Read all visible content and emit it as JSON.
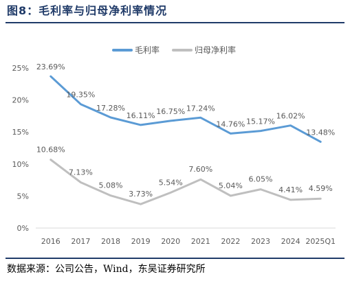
{
  "figure": {
    "title": "图8：毛利率与归母净利率情况",
    "source": "数据来源：公司公告，Wind，东吴证券研究所"
  },
  "colors": {
    "title": "#1f3a68",
    "series_gross": "#5b9bd5",
    "series_net": "#bfbfbf",
    "axis": "#d9d9d9",
    "text": "#595959"
  },
  "chart_data": {
    "type": "line",
    "categories": [
      "2016",
      "2017",
      "2018",
      "2019",
      "2020",
      "2021",
      "2022",
      "2023",
      "2024",
      "2025Q1"
    ],
    "series": [
      {
        "name": "毛利率",
        "values": [
          23.69,
          19.35,
          17.28,
          16.11,
          16.75,
          17.24,
          14.76,
          15.17,
          16.02,
          13.48
        ],
        "labels": [
          "23.69%",
          "19.35%",
          "17.28%",
          "16.11%",
          "16.75%",
          "17.24%",
          "14.76%",
          "15.17%",
          "16.02%",
          "13.48%"
        ]
      },
      {
        "name": "归母净利率",
        "values": [
          10.68,
          7.13,
          5.08,
          3.73,
          5.54,
          7.6,
          5.04,
          6.05,
          4.41,
          4.59
        ],
        "labels": [
          "10.68%",
          "7.13%",
          "5.08%",
          "3.73%",
          "5.54%",
          "7.60%",
          "5.04%",
          "6.05%",
          "4.41%",
          "4.59%"
        ]
      }
    ],
    "yticks": [
      0,
      5,
      10,
      15,
      20,
      25
    ],
    "ytick_labels": [
      "0%",
      "5%",
      "10%",
      "15%",
      "20%",
      "25%"
    ],
    "ylim": [
      0,
      25
    ],
    "grid": false,
    "legend_position": "top-center"
  }
}
